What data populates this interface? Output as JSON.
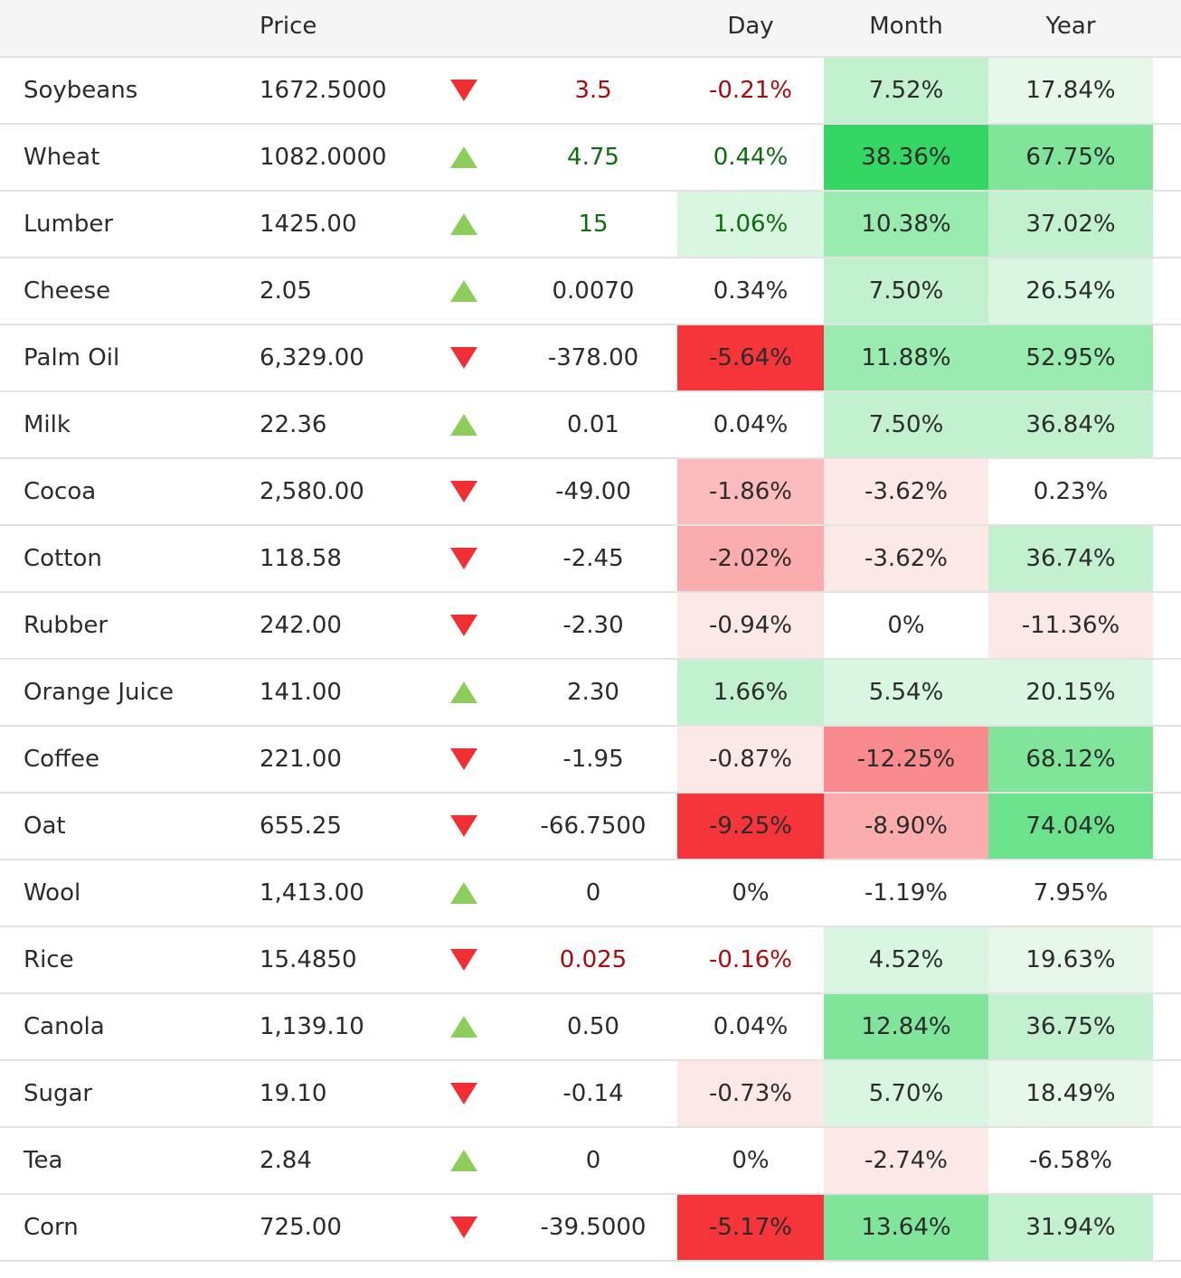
{
  "header": {
    "price": "Price",
    "day": "Day",
    "month": "Month",
    "year": "Year"
  },
  "colors": {
    "down_arrow": "#ef2f34",
    "up_arrow": "#8ccd5c",
    "dark_red_text": "#a80b0b",
    "dark_green_text": "#0e6b0e",
    "default_text": "#2b2b2b"
  },
  "rows": [
    {
      "name": "Soybeans",
      "price": "1672.5000",
      "direction": "down",
      "change": "3.5",
      "change_color": "#a80b0b",
      "day": "-0.21%",
      "day_bg": "#ffffff",
      "day_color": "#a80b0b",
      "month": "7.52%",
      "month_bg": "#c3f1cf",
      "year": "17.84%",
      "year_bg": "#e7f8eb"
    },
    {
      "name": "Wheat",
      "price": "1082.0000",
      "direction": "up",
      "change": "4.75",
      "change_color": "#0e6b0e",
      "day": "0.44%",
      "day_bg": "#ffffff",
      "day_color": "#0e6b0e",
      "month": "38.36%",
      "month_bg": "#35d764",
      "year": "67.75%",
      "year_bg": "#80e59b"
    },
    {
      "name": "Lumber",
      "price": "1425.00",
      "direction": "up",
      "change": "15",
      "change_color": "#0e6b0e",
      "day": "1.06%",
      "day_bg": "#d8f6e0",
      "day_color": "#0e6b0e",
      "month": "10.38%",
      "month_bg": "#9aebb0",
      "year": "37.02%",
      "year_bg": "#c3f1cf"
    },
    {
      "name": "Cheese",
      "price": "2.05",
      "direction": "up",
      "change": "0.0070",
      "change_color": "#2b2b2b",
      "day": "0.34%",
      "day_bg": "#ffffff",
      "day_color": "#2b2b2b",
      "month": "7.50%",
      "month_bg": "#c3f1cf",
      "year": "26.54%",
      "year_bg": "#d8f6e0"
    },
    {
      "name": "Palm Oil",
      "price": "6,329.00",
      "direction": "down",
      "change": "-378.00",
      "change_color": "#2b2b2b",
      "day": "-5.64%",
      "day_bg": "#f6353b",
      "day_color": "#2b2b2b",
      "month": "11.88%",
      "month_bg": "#9aebb0",
      "year": "52.95%",
      "year_bg": "#9aebb0"
    },
    {
      "name": "Milk",
      "price": "22.36",
      "direction": "up",
      "change": "0.01",
      "change_color": "#2b2b2b",
      "day": "0.04%",
      "day_bg": "#ffffff",
      "day_color": "#2b2b2b",
      "month": "7.50%",
      "month_bg": "#c3f1cf",
      "year": "36.84%",
      "year_bg": "#c3f1cf"
    },
    {
      "name": "Cocoa",
      "price": "2,580.00",
      "direction": "down",
      "change": "-49.00",
      "change_color": "#2b2b2b",
      "day": "-1.86%",
      "day_bg": "#fbbcbd",
      "day_color": "#2b2b2b",
      "month": "-3.62%",
      "month_bg": "#fde8e8",
      "year": "0.23%",
      "year_bg": "#ffffff"
    },
    {
      "name": "Cotton",
      "price": "118.58",
      "direction": "down",
      "change": "-2.45",
      "change_color": "#2b2b2b",
      "day": "-2.02%",
      "day_bg": "#fbadae",
      "day_color": "#2b2b2b",
      "month": "-3.62%",
      "month_bg": "#fde8e8",
      "year": "36.74%",
      "year_bg": "#c3f1cf"
    },
    {
      "name": "Rubber",
      "price": "242.00",
      "direction": "down",
      "change": "-2.30",
      "change_color": "#2b2b2b",
      "day": "-0.94%",
      "day_bg": "#fde8e8",
      "day_color": "#2b2b2b",
      "month": "0%",
      "month_bg": "#ffffff",
      "year": "-11.36%",
      "year_bg": "#fde8e8"
    },
    {
      "name": "Orange Juice",
      "price": "141.00",
      "direction": "up",
      "change": "2.30",
      "change_color": "#2b2b2b",
      "day": "1.66%",
      "day_bg": "#c3f1cf",
      "day_color": "#2b2b2b",
      "month": "5.54%",
      "month_bg": "#d8f6e0",
      "year": "20.15%",
      "year_bg": "#d8f6e0"
    },
    {
      "name": "Coffee",
      "price": "221.00",
      "direction": "down",
      "change": "-1.95",
      "change_color": "#2b2b2b",
      "day": "-0.87%",
      "day_bg": "#fde8e8",
      "day_color": "#2b2b2b",
      "month": "-12.25%",
      "month_bg": "#f98b8e",
      "year": "68.12%",
      "year_bg": "#80e59b"
    },
    {
      "name": "Oat",
      "price": "655.25",
      "direction": "down",
      "change": "-66.7500",
      "change_color": "#2b2b2b",
      "day": "-9.25%",
      "day_bg": "#f6353b",
      "day_color": "#2b2b2b",
      "month": "-8.90%",
      "month_bg": "#fbadae",
      "year": "74.04%",
      "year_bg": "#6de28c"
    },
    {
      "name": "Wool",
      "price": "1,413.00",
      "direction": "up",
      "change": "0",
      "change_color": "#2b2b2b",
      "day": "0%",
      "day_bg": "#ffffff",
      "day_color": "#2b2b2b",
      "month": "-1.19%",
      "month_bg": "#ffffff",
      "year": "7.95%",
      "year_bg": "#ffffff"
    },
    {
      "name": "Rice",
      "price": "15.4850",
      "direction": "down",
      "change": "0.025",
      "change_color": "#a80b0b",
      "day": "-0.16%",
      "day_bg": "#ffffff",
      "day_color": "#a80b0b",
      "month": "4.52%",
      "month_bg": "#d8f6e0",
      "year": "19.63%",
      "year_bg": "#e7f8eb"
    },
    {
      "name": "Canola",
      "price": "1,139.10",
      "direction": "up",
      "change": "0.50",
      "change_color": "#2b2b2b",
      "day": "0.04%",
      "day_bg": "#ffffff",
      "day_color": "#2b2b2b",
      "month": "12.84%",
      "month_bg": "#80e59b",
      "year": "36.75%",
      "year_bg": "#c3f1cf"
    },
    {
      "name": "Sugar",
      "price": "19.10",
      "direction": "down",
      "change": "-0.14",
      "change_color": "#2b2b2b",
      "day": "-0.73%",
      "day_bg": "#fde8e8",
      "day_color": "#2b2b2b",
      "month": "5.70%",
      "month_bg": "#d8f6e0",
      "year": "18.49%",
      "year_bg": "#e7f8eb"
    },
    {
      "name": "Tea",
      "price": "2.84",
      "direction": "up",
      "change": "0",
      "change_color": "#2b2b2b",
      "day": "0%",
      "day_bg": "#ffffff",
      "day_color": "#2b2b2b",
      "month": "-2.74%",
      "month_bg": "#fde8e8",
      "year": "-6.58%",
      "year_bg": "#ffffff"
    },
    {
      "name": "Corn",
      "price": "725.00",
      "direction": "down",
      "change": "-39.5000",
      "change_color": "#2b2b2b",
      "day": "-5.17%",
      "day_bg": "#f6353b",
      "day_color": "#2b2b2b",
      "month": "13.64%",
      "month_bg": "#80e59b",
      "year": "31.94%",
      "year_bg": "#c3f1cf"
    }
  ]
}
